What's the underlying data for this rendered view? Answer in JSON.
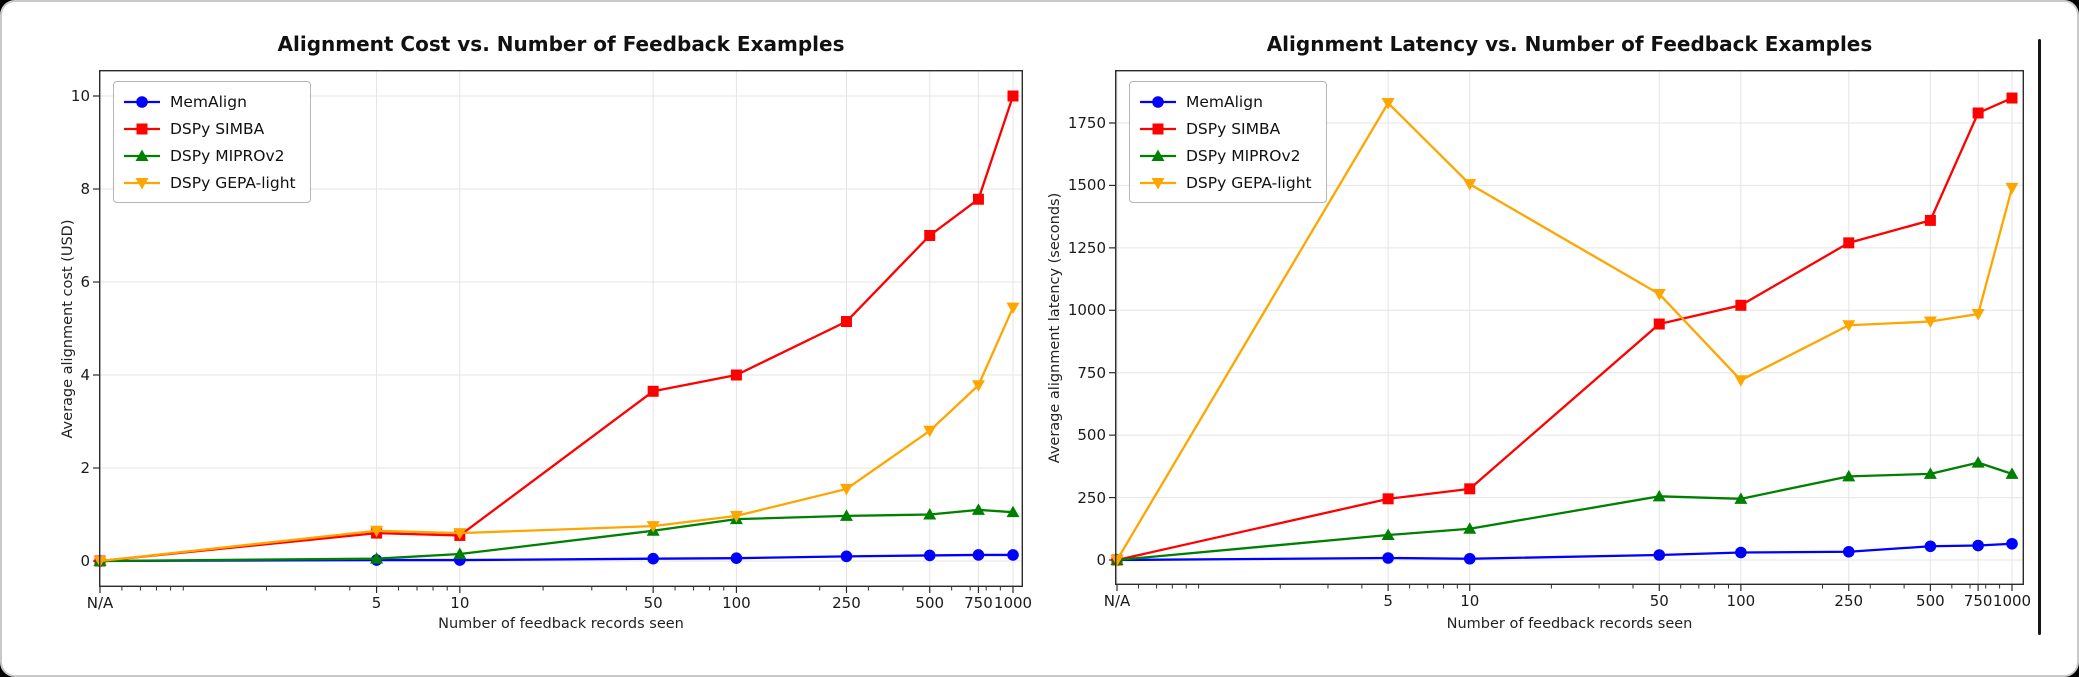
{
  "window": {
    "background_color": "#000000",
    "card_color": "#ffffff",
    "card_border_color": "#c9c9c9"
  },
  "chart_data": [
    {
      "type": "line",
      "title": "Alignment Cost vs. Number of Feedback Examples",
      "xlabel": "Number of feedback records seen",
      "ylabel": "Average alignment cost (USD)",
      "x_scale": "log",
      "grid": true,
      "legend_position": "upper left",
      "categories": [
        "N/A",
        "5",
        "10",
        "50",
        "100",
        "250",
        "500",
        "750",
        "1000"
      ],
      "x_values": [
        0.5,
        5,
        10,
        50,
        100,
        250,
        500,
        750,
        1000
      ],
      "y_ticks": [
        0,
        2,
        4,
        6,
        8,
        10
      ],
      "ylim": [
        0,
        10.6
      ],
      "series": [
        {
          "name": "MemAlign",
          "color": "#0000ff",
          "marker": "circle",
          "values": [
            0.0,
            0.02,
            0.02,
            0.05,
            0.06,
            0.1,
            0.12,
            0.13,
            0.13
          ]
        },
        {
          "name": "DSPy SIMBA",
          "color": "#ff0000",
          "marker": "square",
          "values": [
            0.0,
            0.6,
            0.55,
            3.65,
            4.0,
            5.15,
            7.0,
            7.78,
            10.0
          ]
        },
        {
          "name": "DSPy MIPROv2",
          "color": "#008000",
          "marker": "triangle-up",
          "values": [
            0.0,
            0.05,
            0.15,
            0.65,
            0.9,
            0.97,
            1.0,
            1.1,
            1.05
          ]
        },
        {
          "name": "DSPy GEPA-light",
          "color": "#ffa500",
          "marker": "triangle-down",
          "values": [
            0.0,
            0.65,
            0.6,
            0.75,
            0.97,
            1.55,
            2.8,
            3.78,
            5.45
          ]
        }
      ]
    },
    {
      "type": "line",
      "title": "Alignment Latency vs. Number of Feedback Examples",
      "xlabel": "Number of feedback records seen",
      "ylabel": "Average alignment latency (seconds)",
      "x_scale": "log",
      "grid": true,
      "legend_position": "upper left",
      "categories": [
        "N/A",
        "5",
        "10",
        "50",
        "100",
        "250",
        "500",
        "750",
        "1000"
      ],
      "x_values": [
        0.5,
        5,
        10,
        50,
        100,
        250,
        500,
        750,
        1000
      ],
      "y_ticks": [
        0,
        250,
        500,
        750,
        1000,
        1250,
        1500,
        1750
      ],
      "ylim": [
        0,
        1900
      ],
      "series": [
        {
          "name": "MemAlign",
          "color": "#0000ff",
          "marker": "circle",
          "values": [
            0,
            8,
            5,
            20,
            30,
            33,
            55,
            58,
            65
          ]
        },
        {
          "name": "DSPy SIMBA",
          "color": "#ff0000",
          "marker": "square",
          "values": [
            0,
            245,
            285,
            945,
            1020,
            1270,
            1360,
            1790,
            1850
          ]
        },
        {
          "name": "DSPy MIPROv2",
          "color": "#008000",
          "marker": "triangle-up",
          "values": [
            0,
            100,
            125,
            255,
            245,
            335,
            345,
            390,
            345
          ]
        },
        {
          "name": "DSPy GEPA-light",
          "color": "#ffa500",
          "marker": "triangle-down",
          "values": [
            0,
            1830,
            1505,
            1065,
            720,
            940,
            955,
            985,
            1490
          ]
        }
      ]
    }
  ]
}
